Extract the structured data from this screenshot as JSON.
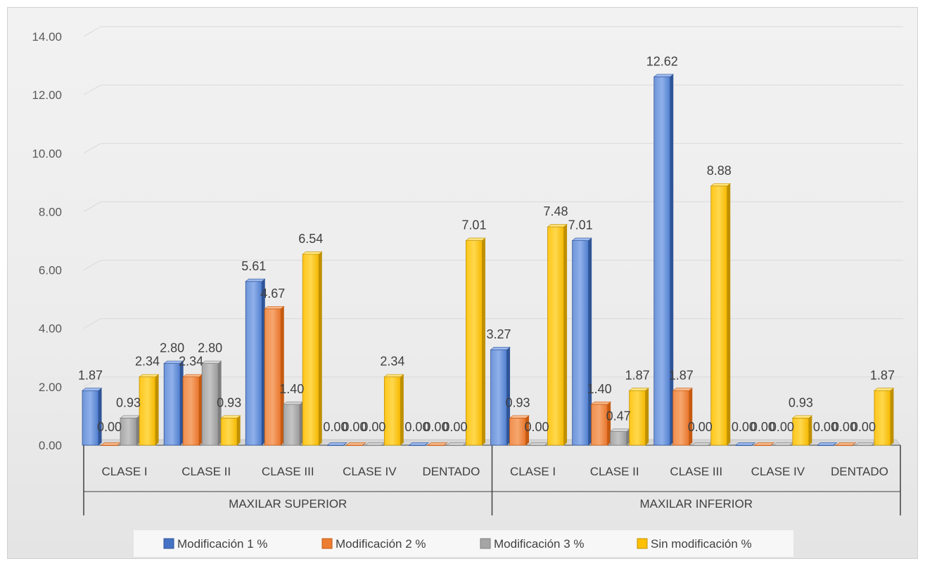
{
  "chart_data": {
    "type": "bar",
    "style": "3d-clustered-column",
    "ylim": [
      0,
      14
    ],
    "ytick_step": 2,
    "ytick_labels": [
      "0.00",
      "2.00",
      "4.00",
      "6.00",
      "8.00",
      "10.00",
      "12.00",
      "14.00"
    ],
    "grid": true,
    "legend_position": "bottom",
    "groups": [
      {
        "name": "MAXILAR SUPERIOR",
        "categories": [
          "CLASE I",
          "CLASE II",
          "CLASE III",
          "CLASE IV",
          "DENTADO"
        ]
      },
      {
        "name": "MAXILAR INFERIOR",
        "categories": [
          "CLASE I",
          "CLASE II",
          "CLASE III",
          "CLASE IV",
          "DENTADO"
        ]
      }
    ],
    "series": [
      {
        "name": "Modificación 1 %",
        "color": "#4472C4",
        "values": [
          1.87,
          2.8,
          5.61,
          0.0,
          0.0,
          3.27,
          7.01,
          12.62,
          0.0,
          0.0
        ],
        "labels": [
          "1.87",
          "2.80",
          "5.61",
          "0.00",
          "0.00",
          "3.27",
          "7.01",
          "12.62",
          "0.00",
          "0.00"
        ]
      },
      {
        "name": "Modificación 2 %",
        "color": "#ED7D31",
        "values": [
          0.0,
          2.34,
          4.67,
          0.0,
          0.0,
          0.93,
          1.4,
          1.87,
          0.0,
          0.0
        ],
        "labels": [
          "0.00",
          "2.34",
          "4.67",
          "0.00",
          "0.00",
          "0.93",
          "1.40",
          "1.87",
          "0.00",
          "0.00"
        ]
      },
      {
        "name": "Modificación 3 %",
        "color": "#A5A5A5",
        "values": [
          0.93,
          2.8,
          1.4,
          0.0,
          0.0,
          0.0,
          0.47,
          0.0,
          0.0,
          0.0
        ],
        "labels": [
          "0.93",
          "2.80",
          "1.40",
          "0.00",
          "0.00",
          "0.00",
          "0.47",
          "0.00",
          "0.00",
          "0.00"
        ]
      },
      {
        "name": "Sin modificación %",
        "color": "#FFC000",
        "values": [
          2.34,
          0.93,
          6.54,
          2.34,
          7.01,
          7.48,
          1.87,
          8.88,
          0.93,
          1.87
        ],
        "labels": [
          "2.34",
          "0.93",
          "6.54",
          "2.34",
          "7.01",
          "7.48",
          "1.87",
          "8.88",
          "0.93",
          "1.87"
        ]
      }
    ]
  }
}
